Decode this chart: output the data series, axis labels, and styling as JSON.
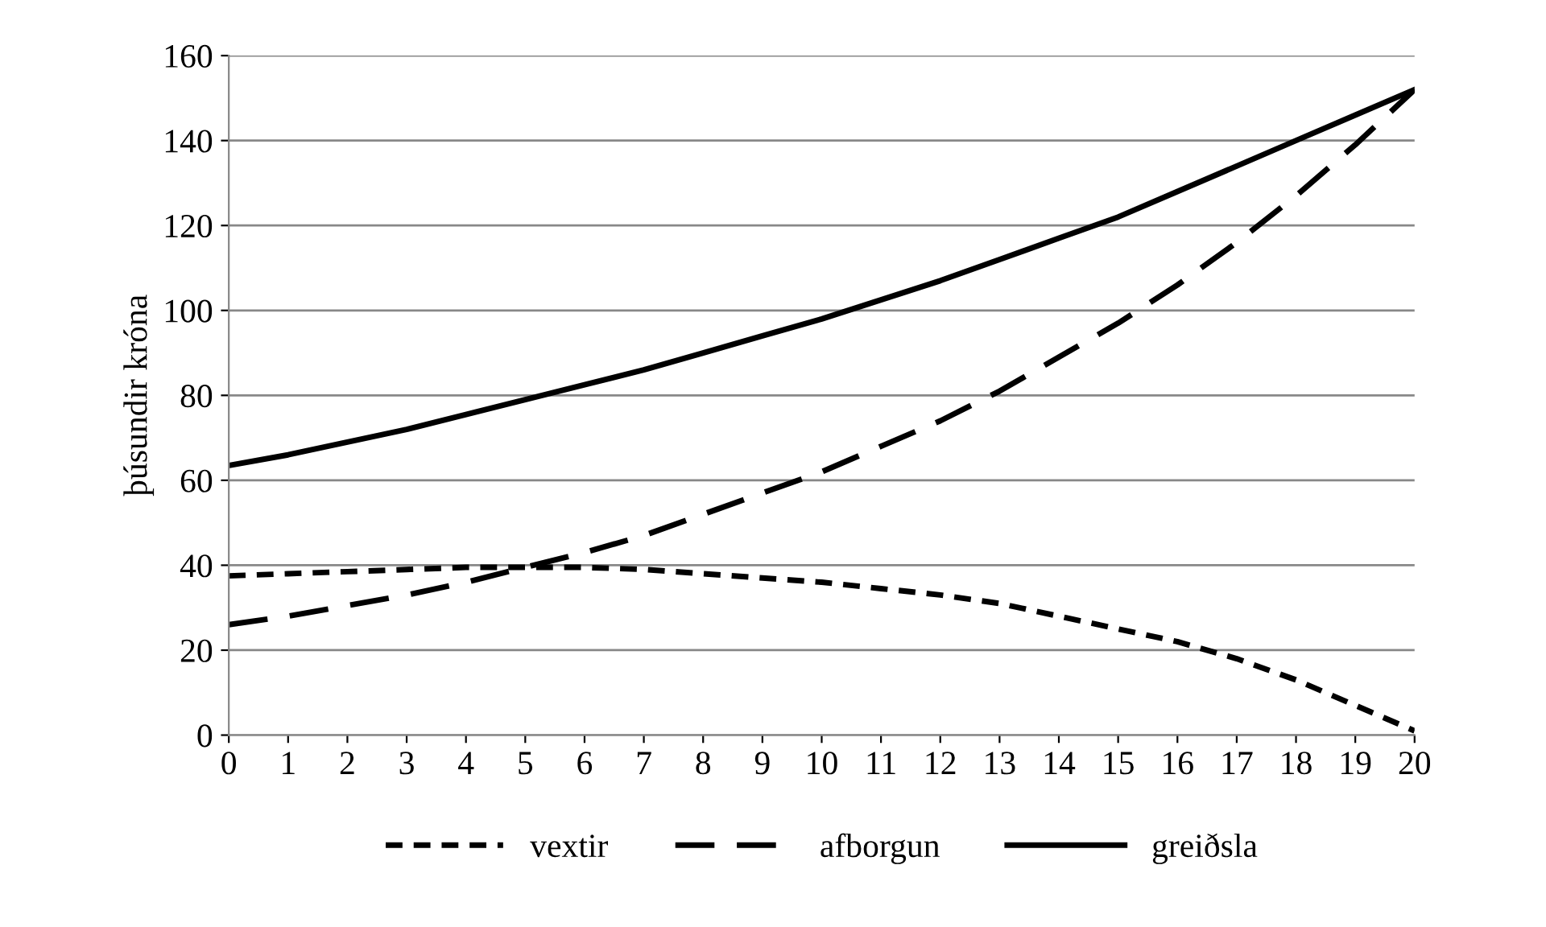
{
  "chart_data": {
    "type": "line",
    "ylabel": "þúsundir króna",
    "x": [
      0,
      1,
      2,
      3,
      4,
      5,
      6,
      7,
      8,
      9,
      10,
      11,
      12,
      13,
      14,
      15,
      16,
      17,
      18,
      19,
      20
    ],
    "series": [
      {
        "name": "vextir",
        "color": "#000000",
        "line_style": "dotted",
        "values": [
          37.5,
          38,
          38.5,
          39,
          39.5,
          39.5,
          39.5,
          39,
          38,
          37,
          36,
          34.5,
          33,
          31,
          28,
          25,
          22,
          18,
          13,
          7,
          1
        ]
      },
      {
        "name": "afborgun",
        "color": "#000000",
        "line_style": "dashed",
        "values": [
          26,
          28,
          30.5,
          33,
          36,
          39.5,
          43,
          47,
          52,
          57,
          62,
          68,
          74,
          81,
          89,
          97,
          106,
          116,
          127,
          139,
          152
        ]
      },
      {
        "name": "greiðsla",
        "color": "#000000",
        "line_style": "solid",
        "values": [
          63.5,
          66,
          69,
          72,
          75.5,
          79,
          82.5,
          86,
          90,
          94,
          98,
          102.5,
          107,
          112,
          117,
          122,
          128,
          134,
          140,
          146,
          152
        ]
      }
    ],
    "xlim": [
      0,
      20
    ],
    "xticks": [
      0,
      1,
      2,
      3,
      4,
      5,
      6,
      7,
      8,
      9,
      10,
      11,
      12,
      13,
      14,
      15,
      16,
      17,
      18,
      19,
      20
    ],
    "ylim": [
      0,
      160
    ],
    "yticks": [
      0,
      20,
      40,
      60,
      80,
      100,
      120,
      140,
      160
    ],
    "grid": "y",
    "legend": "bottom",
    "marker": "none"
  }
}
